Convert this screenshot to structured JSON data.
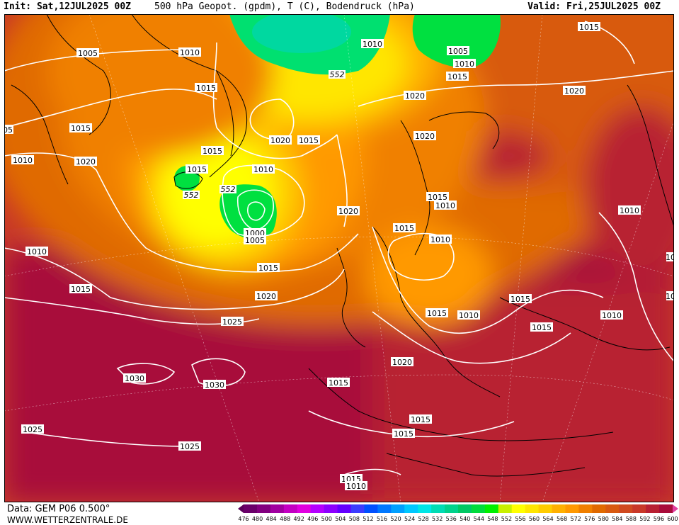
{
  "header": {
    "init": "Init: Sat,12JUL2025 00Z",
    "title": "500 hPa Geopot. (gpdm), T (C), Bodendruck (hPa)",
    "valid": "Valid: Fri,25JUL2025 00Z"
  },
  "footer": {
    "data_source": "Data: GEM P06 0.500°",
    "website": "WWW.WETTERZENTRALE.DE"
  },
  "legend": {
    "ticks": [
      "476",
      "480",
      "484",
      "488",
      "492",
      "496",
      "500",
      "504",
      "508",
      "512",
      "516",
      "520",
      "524",
      "528",
      "532",
      "536",
      "540",
      "544",
      "548",
      "552",
      "556",
      "560",
      "564",
      "568",
      "572",
      "576",
      "580",
      "584",
      "588",
      "592",
      "596",
      "600"
    ],
    "colors": [
      "#6a006a",
      "#82007f",
      "#a000a0",
      "#c300c3",
      "#e000e0",
      "#b400ff",
      "#8c00ff",
      "#6400ff",
      "#3c3cff",
      "#0050ff",
      "#0078ff",
      "#00a0ff",
      "#00c8ff",
      "#00e6e6",
      "#00dcb4",
      "#00d28c",
      "#00c864",
      "#00dc3c",
      "#00f000",
      "#c8f000",
      "#ffff00",
      "#ffe600",
      "#ffcc00",
      "#ffb000",
      "#ff9900",
      "#f08000",
      "#e06a00",
      "#d85a10",
      "#d04a20",
      "#c83828",
      "#b82032",
      "#a80c3a"
    ],
    "arrow_left_color": "#5a005a",
    "arrow_right_color": "#e040a0"
  },
  "isobar_labels": [
    "1005",
    "1010",
    "1015",
    "1010",
    "1005",
    "1010",
    "1015",
    "1015",
    "1020",
    "1015",
    "1020",
    "1015",
    "05",
    "1010",
    "1020",
    "1015",
    "1010",
    "1020",
    "1015",
    "1020",
    "1010",
    "1010",
    "1015",
    "1015",
    "1010",
    "1000",
    "1005",
    "1015",
    "1010",
    "1015",
    "1020",
    "1020",
    "1025",
    "1015",
    "1010",
    "1015",
    "1015",
    "1010",
    "1030",
    "1030",
    "1020",
    "1015",
    "1025",
    "1025",
    "1015",
    "1015",
    "1015",
    "1010",
    "10",
    "10"
  ],
  "height_labels": [
    "552",
    "552",
    "552"
  ]
}
